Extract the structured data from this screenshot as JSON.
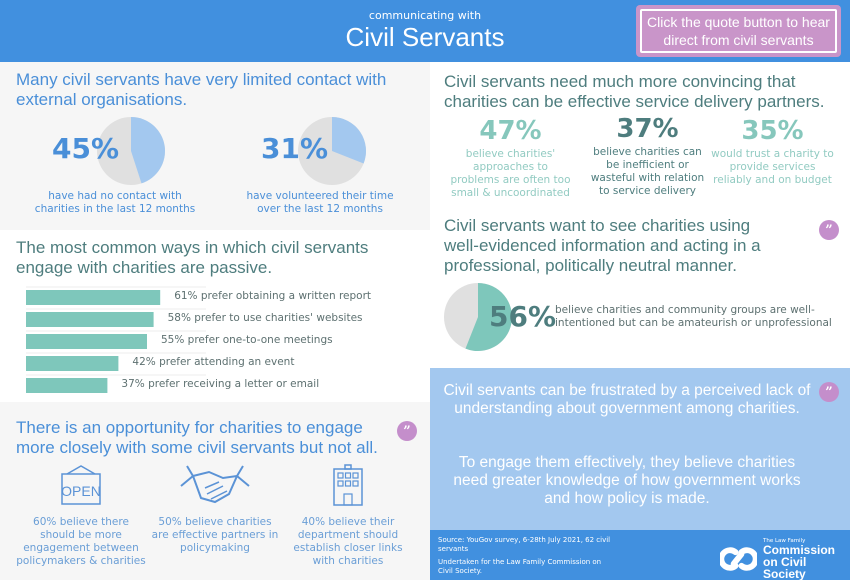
{
  "header": {
    "subtitle": "communicating with",
    "title": "Civil Servants",
    "quote_hint": "Click the quote button to hear direct from civil servants"
  },
  "colors": {
    "header_blue": "#4190df",
    "accent_purple": "#c48ecb",
    "teal": "#7ec7bb",
    "light_blue": "#a3c8ef",
    "pie_grey": "#e0e0e0"
  },
  "contact": {
    "heading": "Many civil servants have very limited contact with external organisations.",
    "stats": [
      {
        "value": 45,
        "label": "45%",
        "caption": "have had no contact with charities in the last 12 months"
      },
      {
        "value": 31,
        "label": "31%",
        "caption": "have volunteered their time over the last 12 months"
      }
    ]
  },
  "engagement": {
    "heading": "The most common ways in which civil servants engage with charities are passive."
  },
  "chart_data": {
    "type": "bar",
    "orientation": "horizontal",
    "title": "The most common ways in which civil servants engage with charities are passive.",
    "categories": [
      "prefer obtaining a written report",
      "prefer to use charities' websites",
      "prefer one-to-one meetings",
      "prefer attending an event",
      "prefer receiving a letter or email"
    ],
    "values": [
      61,
      58,
      55,
      42,
      37
    ],
    "labels": [
      "61% prefer obtaining a written report",
      "58% prefer to use charities' websites",
      "55% prefer one-to-one meetings",
      "42% prefer attending an event",
      "37% prefer receiving a letter or email"
    ],
    "xlim": [
      0,
      100
    ],
    "grid": true,
    "unit": "%"
  },
  "opportunity": {
    "heading": "There is an opportunity for charities to engage more closely with some civil servants but not all.",
    "items": [
      {
        "icon": "open-sign-icon",
        "text": "60% believe there should be more engagement between policymakers & charities"
      },
      {
        "icon": "handshake-icon",
        "text": "50% believe charities are effective partners in policymaking"
      },
      {
        "icon": "building-icon",
        "text": "40% believe their department should establish closer links with charities"
      }
    ]
  },
  "service": {
    "heading": "Civil servants need much more convincing that charities can be effective service delivery partners.",
    "stats": [
      {
        "label": "47%",
        "text": "believe charities' approaches to problems are often too small & uncoordinated"
      },
      {
        "label": "37%",
        "text": "believe charities can be inefficient or wasteful with relation to service delivery"
      },
      {
        "label": "35%",
        "text": "would trust a charity to provide services reliably and on budget"
      }
    ]
  },
  "professional": {
    "heading": "Civil servants want to see charities using well-evidenced information and acting in a professional, politically neutral manner.",
    "value": 56,
    "label": "56%",
    "caption": "believe charities and community groups are well-intentioned but can be amateurish or unprofessional"
  },
  "frustration": {
    "para1": "Civil servants can be frustrated by a perceived lack of understanding about government among charities.",
    "para2": "To engage them effectively, they believe charities need greater knowledge of how government works and how policy is made."
  },
  "footer": {
    "source": "Source: YouGov survey, 6-28th July 2021, 62 civil servants",
    "undertaken": "Undertaken for the Law Family Commission on Civil Society.",
    "logo_small": "The Law Family",
    "logo_line1": "Commission",
    "logo_line2": "on Civil Society"
  },
  "quote_icon_glyph": "”"
}
